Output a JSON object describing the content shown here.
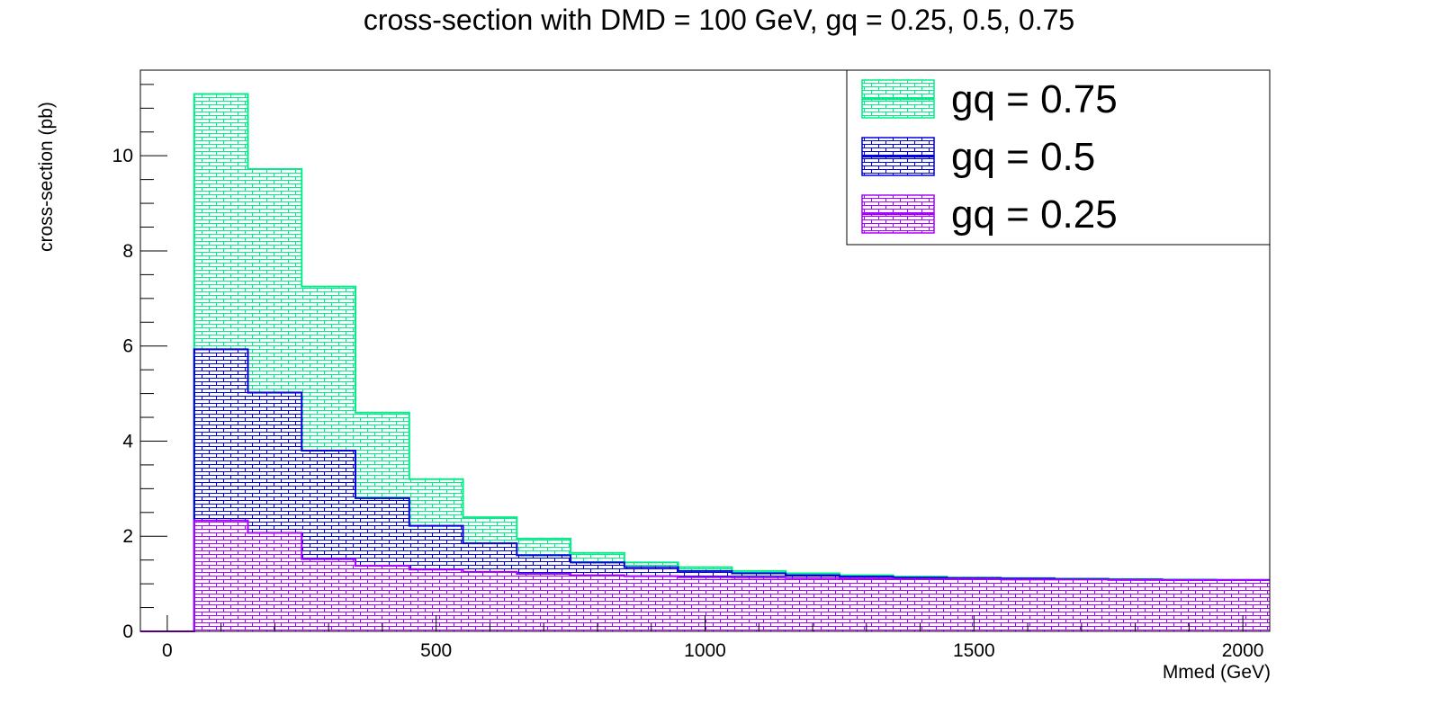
{
  "chart_data": {
    "type": "histogram",
    "title": "cross-section with DMD = 100 GeV, gq = 0.25, 0.5, 0.75",
    "xlabel": "Mmed (GeV)",
    "ylabel": "cross-section (pb)",
    "xlim": [
      -50,
      2050
    ],
    "ylim": [
      0,
      11.8
    ],
    "x_ticks": [
      "0",
      "500",
      "1000",
      "1500",
      "2000"
    ],
    "y_ticks": [
      "0",
      "2",
      "4",
      "6",
      "8",
      "10"
    ],
    "bin_edges": [
      -50,
      50,
      150,
      250,
      350,
      450,
      550,
      650,
      750,
      850,
      950,
      1050,
      1150,
      1250,
      1350,
      1450,
      1550,
      1650,
      1750,
      1850,
      1950,
      2050
    ],
    "legend_position": "top-right",
    "series": [
      {
        "name": "gq = 0.75",
        "color": "#00ee88",
        "values": [
          0,
          11.3,
          9.72,
          7.25,
          4.6,
          3.2,
          2.4,
          1.95,
          1.65,
          1.45,
          1.35,
          1.27,
          1.22,
          1.18,
          1.15,
          1.13,
          1.12,
          1.11,
          1.1,
          1.09,
          1.08
        ]
      },
      {
        "name": "gq = 0.5",
        "color": "#0000dd",
        "values": [
          0,
          5.93,
          5.02,
          3.8,
          2.8,
          2.22,
          1.85,
          1.6,
          1.45,
          1.35,
          1.27,
          1.22,
          1.18,
          1.15,
          1.13,
          1.12,
          1.11,
          1.1,
          1.09,
          1.08,
          1.08
        ]
      },
      {
        "name": "gq = 0.25",
        "color": "#aa00ff",
        "values": [
          0,
          2.33,
          2.07,
          1.52,
          1.38,
          1.3,
          1.25,
          1.21,
          1.18,
          1.16,
          1.14,
          1.13,
          1.12,
          1.11,
          1.1,
          1.1,
          1.09,
          1.09,
          1.08,
          1.08,
          1.08
        ]
      }
    ]
  }
}
